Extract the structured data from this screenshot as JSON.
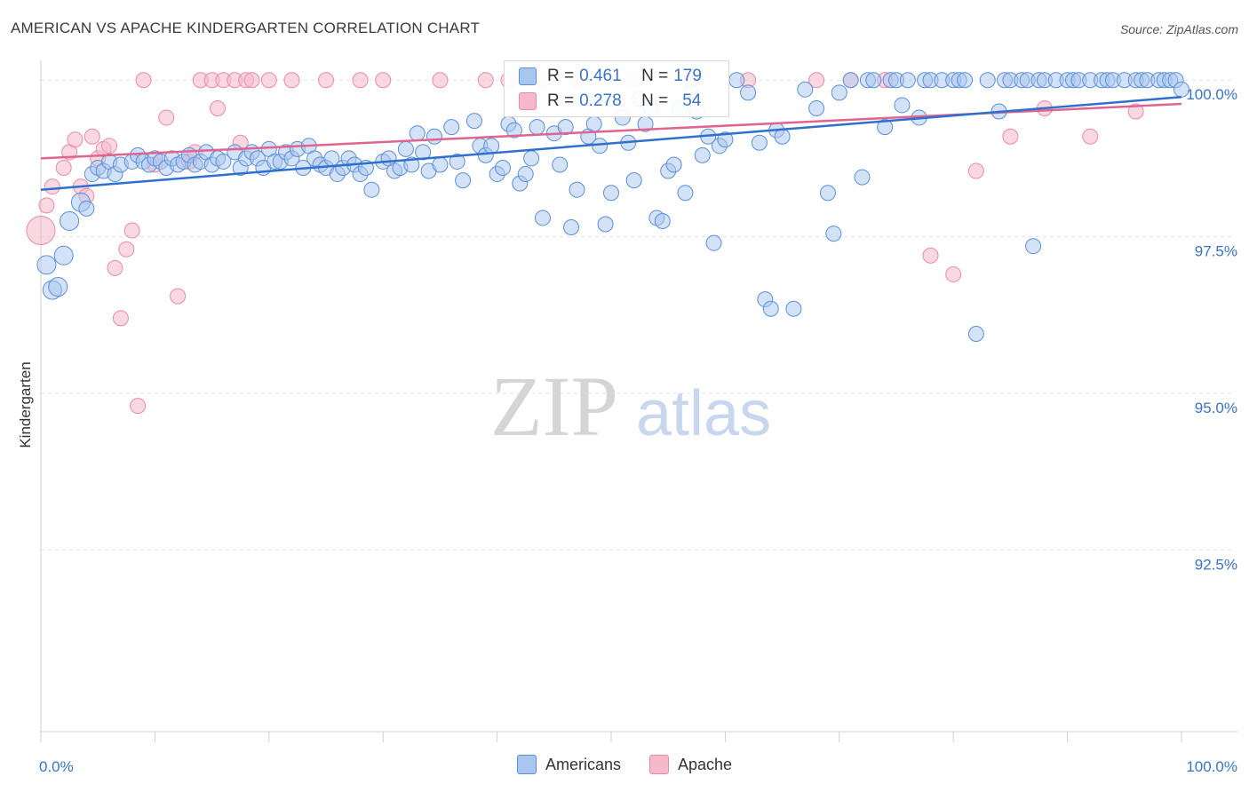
{
  "title": "AMERICAN VS APACHE KINDERGARTEN CORRELATION CHART",
  "source": "Source: ZipAtlas.com",
  "watermark": {
    "zip": "ZIP",
    "atlas": "atlas"
  },
  "colors": {
    "blue_fill": "#a9c6ef",
    "blue_stroke": "#5b8fd6",
    "blue_line": "#2f6fce",
    "pink_fill": "#f6b8cb",
    "pink_stroke": "#e98aa8",
    "pink_line": "#e0648f",
    "tick_text": "#3b73c4",
    "grid": "#e3e3e3"
  },
  "legend": [
    {
      "r_label": "R =",
      "r_value": "0.461",
      "n_label": "N =",
      "n_value": "179"
    },
    {
      "r_label": "R =",
      "r_value": "0.278",
      "n_label": "N =",
      "n_value": "54"
    }
  ],
  "bottom_legend": [
    "Americans",
    "Apache"
  ],
  "chart_data": {
    "type": "scatter",
    "title": "AMERICAN VS APACHE KINDERGARTEN CORRELATION CHART",
    "xlabel": "",
    "ylabel": "Kindergarten",
    "xlim": [
      0,
      100
    ],
    "ylim": [
      89.6,
      100.4
    ],
    "x_tick_labels": [
      "0.0%",
      "100.0%"
    ],
    "y_ticks": [
      92.5,
      95.0,
      97.5,
      100.0
    ],
    "y_tick_labels": [
      "92.5%",
      "95.0%",
      "97.5%",
      "100.0%"
    ],
    "grid": "horizontal dashed",
    "legend_position": "top-center",
    "series": [
      {
        "name": "Americans",
        "R": 0.461,
        "N": 179,
        "trend": {
          "x": [
            0,
            100
          ],
          "y": [
            98.25,
            99.73
          ]
        },
        "points": [
          [
            0.5,
            97.05
          ],
          [
            1,
            96.65
          ],
          [
            1.5,
            96.7
          ],
          [
            2,
            97.2
          ],
          [
            2.5,
            97.75
          ],
          [
            3.5,
            98.05
          ],
          [
            4,
            97.95
          ],
          [
            4.5,
            98.5
          ],
          [
            5,
            98.6
          ],
          [
            5.5,
            98.55
          ],
          [
            6,
            98.7
          ],
          [
            6.5,
            98.5
          ],
          [
            7,
            98.65
          ],
          [
            8,
            98.7
          ],
          [
            8.5,
            98.8
          ],
          [
            9,
            98.7
          ],
          [
            9.5,
            98.65
          ],
          [
            10,
            98.75
          ],
          [
            10.5,
            98.7
          ],
          [
            11,
            98.6
          ],
          [
            11.5,
            98.75
          ],
          [
            12,
            98.65
          ],
          [
            12.5,
            98.7
          ],
          [
            13,
            98.8
          ],
          [
            13.5,
            98.65
          ],
          [
            14,
            98.7
          ],
          [
            14.5,
            98.85
          ],
          [
            15,
            98.65
          ],
          [
            15.5,
            98.75
          ],
          [
            16,
            98.7
          ],
          [
            17,
            98.85
          ],
          [
            17.5,
            98.6
          ],
          [
            18,
            98.75
          ],
          [
            18.5,
            98.85
          ],
          [
            19,
            98.75
          ],
          [
            19.5,
            98.6
          ],
          [
            20,
            98.9
          ],
          [
            20.5,
            98.7
          ],
          [
            21,
            98.7
          ],
          [
            21.5,
            98.85
          ],
          [
            22,
            98.75
          ],
          [
            22.5,
            98.9
          ],
          [
            23,
            98.6
          ],
          [
            23.5,
            98.95
          ],
          [
            24,
            98.75
          ],
          [
            24.5,
            98.65
          ],
          [
            25,
            98.6
          ],
          [
            25.5,
            98.75
          ],
          [
            26,
            98.5
          ],
          [
            26.5,
            98.6
          ],
          [
            27,
            98.75
          ],
          [
            27.5,
            98.65
          ],
          [
            28,
            98.5
          ],
          [
            28.5,
            98.6
          ],
          [
            29,
            98.25
          ],
          [
            30,
            98.7
          ],
          [
            30.5,
            98.75
          ],
          [
            31,
            98.55
          ],
          [
            31.5,
            98.6
          ],
          [
            32,
            98.9
          ],
          [
            32.5,
            98.65
          ],
          [
            33,
            99.15
          ],
          [
            33.5,
            98.85
          ],
          [
            34,
            98.55
          ],
          [
            34.5,
            99.1
          ],
          [
            35,
            98.65
          ],
          [
            36,
            99.25
          ],
          [
            36.5,
            98.7
          ],
          [
            37,
            98.4
          ],
          [
            38,
            99.35
          ],
          [
            38.5,
            98.95
          ],
          [
            39,
            98.8
          ],
          [
            39.5,
            98.95
          ],
          [
            40,
            98.5
          ],
          [
            40.5,
            98.6
          ],
          [
            41,
            99.3
          ],
          [
            41.5,
            99.2
          ],
          [
            42,
            98.35
          ],
          [
            42.5,
            98.5
          ],
          [
            43,
            98.75
          ],
          [
            43.5,
            99.25
          ],
          [
            44,
            97.8
          ],
          [
            45,
            99.15
          ],
          [
            45.5,
            98.65
          ],
          [
            46,
            99.25
          ],
          [
            46.5,
            97.65
          ],
          [
            47,
            98.25
          ],
          [
            48,
            99.1
          ],
          [
            48.5,
            99.3
          ],
          [
            49,
            98.95
          ],
          [
            49.5,
            97.7
          ],
          [
            50,
            98.2
          ],
          [
            51,
            99.4
          ],
          [
            51.5,
            99.0
          ],
          [
            52,
            98.4
          ],
          [
            52.5,
            99.7
          ],
          [
            53,
            99.3
          ],
          [
            53.5,
            99.55
          ],
          [
            54,
            97.8
          ],
          [
            54.5,
            97.75
          ],
          [
            55,
            98.55
          ],
          [
            55.5,
            98.65
          ],
          [
            56,
            99.55
          ],
          [
            56.5,
            98.2
          ],
          [
            57,
            99.8
          ],
          [
            57.5,
            99.5
          ],
          [
            58,
            98.8
          ],
          [
            58.5,
            99.1
          ],
          [
            59,
            97.4
          ],
          [
            59.5,
            98.95
          ],
          [
            60,
            99.05
          ],
          [
            61,
            100
          ],
          [
            62,
            99.8
          ],
          [
            63,
            99.0
          ],
          [
            63.5,
            96.5
          ],
          [
            64,
            96.35
          ],
          [
            64.5,
            99.2
          ],
          [
            65,
            99.1
          ],
          [
            66,
            96.35
          ],
          [
            67,
            99.85
          ],
          [
            68,
            99.55
          ],
          [
            69,
            98.2
          ],
          [
            69.5,
            97.55
          ],
          [
            70,
            99.8
          ],
          [
            71,
            100
          ],
          [
            72,
            98.45
          ],
          [
            72.5,
            100
          ],
          [
            73,
            100
          ],
          [
            74,
            99.25
          ],
          [
            74.5,
            100
          ],
          [
            75,
            100
          ],
          [
            75.5,
            99.6
          ],
          [
            76,
            100
          ],
          [
            77,
            99.4
          ],
          [
            77.5,
            100
          ],
          [
            78,
            100
          ],
          [
            79,
            100
          ],
          [
            80,
            100
          ],
          [
            80.5,
            100
          ],
          [
            81,
            100
          ],
          [
            82,
            95.95
          ],
          [
            83,
            100
          ],
          [
            84,
            99.5
          ],
          [
            84.5,
            100
          ],
          [
            85,
            100
          ],
          [
            86,
            100
          ],
          [
            86.5,
            100
          ],
          [
            87,
            97.35
          ],
          [
            87.5,
            100
          ],
          [
            88,
            100
          ],
          [
            89,
            100
          ],
          [
            90,
            100
          ],
          [
            90.5,
            100
          ],
          [
            91,
            100
          ],
          [
            92,
            100
          ],
          [
            93,
            100
          ],
          [
            93.5,
            100
          ],
          [
            94,
            100
          ],
          [
            95,
            100
          ],
          [
            96,
            100
          ],
          [
            96.5,
            100
          ],
          [
            97,
            100
          ],
          [
            98,
            100
          ],
          [
            98.5,
            100
          ],
          [
            99,
            100
          ],
          [
            99.5,
            100
          ],
          [
            100,
            99.85
          ]
        ]
      },
      {
        "name": "Apache",
        "R": 0.278,
        "N": 54,
        "trend": {
          "x": [
            0,
            100
          ],
          "y": [
            98.75,
            99.62
          ]
        },
        "points": [
          [
            0,
            97.6
          ],
          [
            0.5,
            98.0
          ],
          [
            1,
            98.3
          ],
          [
            2,
            98.6
          ],
          [
            2.5,
            98.85
          ],
          [
            3,
            99.05
          ],
          [
            3.5,
            98.3
          ],
          [
            4,
            98.15
          ],
          [
            4.5,
            99.1
          ],
          [
            5,
            98.75
          ],
          [
            5.5,
            98.9
          ],
          [
            6,
            98.95
          ],
          [
            6.5,
            97.0
          ],
          [
            7,
            96.2
          ],
          [
            7.5,
            97.3
          ],
          [
            8,
            97.6
          ],
          [
            8.5,
            94.8
          ],
          [
            9,
            100
          ],
          [
            10,
            98.65
          ],
          [
            11,
            99.4
          ],
          [
            12,
            96.55
          ],
          [
            13,
            98.7
          ],
          [
            13.5,
            98.85
          ],
          [
            14,
            100
          ],
          [
            15,
            100
          ],
          [
            15.5,
            99.55
          ],
          [
            16,
            100
          ],
          [
            17,
            100
          ],
          [
            17.5,
            99.0
          ],
          [
            18,
            100
          ],
          [
            18.5,
            100
          ],
          [
            20,
            100
          ],
          [
            22,
            100
          ],
          [
            25,
            100
          ],
          [
            28,
            100
          ],
          [
            30,
            100
          ],
          [
            35,
            100
          ],
          [
            39,
            100
          ],
          [
            41,
            100
          ],
          [
            44,
            100
          ],
          [
            47,
            100
          ],
          [
            52,
            100
          ],
          [
            57,
            100
          ],
          [
            62,
            100
          ],
          [
            68,
            100
          ],
          [
            71,
            100
          ],
          [
            74,
            100
          ],
          [
            78,
            97.2
          ],
          [
            80,
            96.9
          ],
          [
            82,
            98.55
          ],
          [
            85,
            99.1
          ],
          [
            88,
            99.55
          ],
          [
            92,
            99.1
          ],
          [
            96,
            99.5
          ]
        ]
      }
    ]
  }
}
